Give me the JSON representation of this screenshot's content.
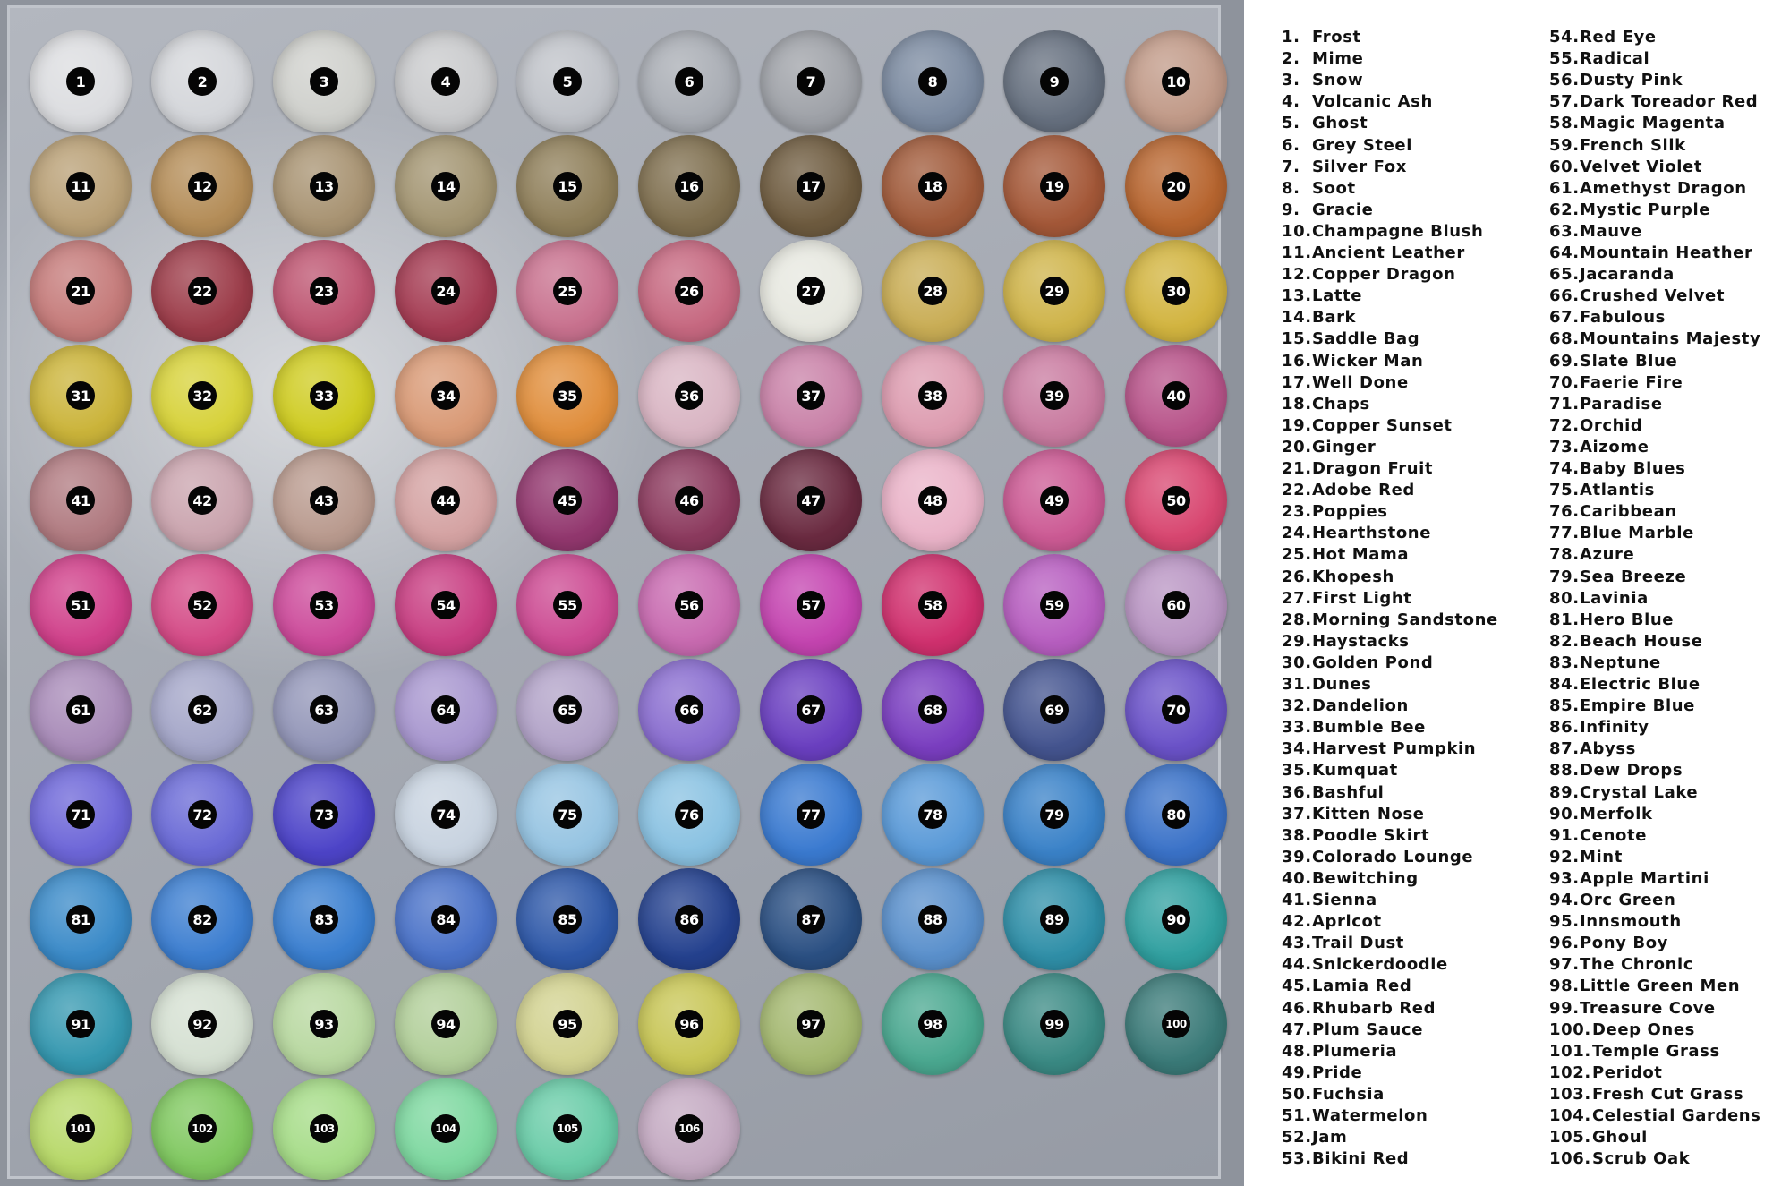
{
  "swatches": [
    {
      "num": "1",
      "name": "Frost",
      "color": "#dcdde0"
    },
    {
      "num": "2",
      "name": "Mime",
      "color": "#d4d6da"
    },
    {
      "num": "3",
      "name": "Snow",
      "color": "#cfd0cc"
    },
    {
      "num": "4",
      "name": "Volcanic Ash",
      "color": "#c9cacc"
    },
    {
      "num": "5",
      "name": "Ghost",
      "color": "#bfc2c8"
    },
    {
      "num": "6",
      "name": "Grey Steel",
      "color": "#a9adb4"
    },
    {
      "num": "7",
      "name": "Silver Fox",
      "color": "#9fa2a8"
    },
    {
      "num": "8",
      "name": "Soot",
      "color": "#7b8aa0"
    },
    {
      "num": "9",
      "name": "Gracie",
      "color": "#66707f"
    },
    {
      "num": "10",
      "name": "Champagne Blush",
      "color": "#c19a88"
    },
    {
      "num": "11",
      "name": "Ancient Leather",
      "color": "#b9a076"
    },
    {
      "num": "12",
      "name": "Copper Dragon",
      "color": "#b48d58"
    },
    {
      "num": "13",
      "name": "Latte",
      "color": "#a89372"
    },
    {
      "num": "14",
      "name": "Bark",
      "color": "#a39572"
    },
    {
      "num": "15",
      "name": "Saddle Bag",
      "color": "#8f7f5a"
    },
    {
      "num": "16",
      "name": "Wicker Man",
      "color": "#7f6f4f"
    },
    {
      "num": "17",
      "name": "Well Done",
      "color": "#6e5b3f"
    },
    {
      "num": "18",
      "name": "Chaps",
      "color": "#a05a3a"
    },
    {
      "num": "19",
      "name": "Copper Sunset",
      "color": "#a45838"
    },
    {
      "num": "20",
      "name": "Ginger",
      "color": "#b7652f"
    },
    {
      "num": "21",
      "name": "Dragon Fruit",
      "color": "#c57b7a"
    },
    {
      "num": "22",
      "name": "Adobe Red",
      "color": "#9c3c49"
    },
    {
      "num": "23",
      "name": "Poppies",
      "color": "#bd5470"
    },
    {
      "num": "24",
      "name": "Hearthstone",
      "color": "#a43b52"
    },
    {
      "num": "25",
      "name": "Hot Mama",
      "color": "#c8718e"
    },
    {
      "num": "26",
      "name": "Khopesh",
      "color": "#c66880"
    },
    {
      "num": "27",
      "name": "First Light",
      "color": "#e7e8e0"
    },
    {
      "num": "28",
      "name": "Morning Sandstone",
      "color": "#c9ad55"
    },
    {
      "num": "29",
      "name": "Haystacks",
      "color": "#cfb44a"
    },
    {
      "num": "30",
      "name": "Golden Pond",
      "color": "#d2b43f"
    },
    {
      "num": "31",
      "name": "Dunes",
      "color": "#cbb43a"
    },
    {
      "num": "32",
      "name": "Dandelion",
      "color": "#d7d23a"
    },
    {
      "num": "33",
      "name": "Bumble Bee",
      "color": "#cfcc22"
    },
    {
      "num": "34",
      "name": "Harvest Pumpkin",
      "color": "#d99a76"
    },
    {
      "num": "35",
      "name": "Kumquat",
      "color": "#e08e3c"
    },
    {
      "num": "36",
      "name": "Bashful",
      "color": "#d9b5c3"
    },
    {
      "num": "37",
      "name": "Kitten Nose",
      "color": "#c982a8"
    },
    {
      "num": "38",
      "name": "Poodle Skirt",
      "color": "#dd9cb0"
    },
    {
      "num": "39",
      "name": "Colorado Lounge",
      "color": "#c97ba0"
    },
    {
      "num": "40",
      "name": "Bewitching",
      "color": "#b8548a"
    },
    {
      "num": "41",
      "name": "Sienna",
      "color": "#b07a80"
    },
    {
      "num": "42",
      "name": "Apricot",
      "color": "#caa4ae"
    },
    {
      "num": "43",
      "name": "Trail Dust",
      "color": "#b99a8e"
    },
    {
      "num": "44",
      "name": "Snickerdoodle",
      "color": "#d4a2a2"
    },
    {
      "num": "45",
      "name": "Lamia Red",
      "color": "#92376e"
    },
    {
      "num": "46",
      "name": "Rhubarb Red",
      "color": "#8c3a5e"
    },
    {
      "num": "47",
      "name": "Plum Sauce",
      "color": "#6a2a40"
    },
    {
      "num": "48",
      "name": "Plumeria",
      "color": "#eab3c8"
    },
    {
      "num": "49",
      "name": "Pride",
      "color": "#cc5a94"
    },
    {
      "num": "50",
      "name": "Fuchsia",
      "color": "#d84670"
    },
    {
      "num": "51",
      "name": "Watermelon",
      "color": "#d0408a"
    },
    {
      "num": "52",
      "name": "Jam",
      "color": "#d44a86"
    },
    {
      "num": "53",
      "name": "Bikini Red",
      "color": "#cc4a9a"
    },
    {
      "num": "54",
      "name": "Red Eye",
      "color": "#c83e82"
    },
    {
      "num": "55",
      "name": "Radical",
      "color": "#cc4a92"
    },
    {
      "num": "56",
      "name": "Dusty Pink",
      "color": "#c86ab0"
    },
    {
      "num": "57",
      "name": "Dark Toreador Red",
      "color": "#c444b0"
    },
    {
      "num": "58",
      "name": "Magic Magenta",
      "color": "#d0306e"
    },
    {
      "num": "59",
      "name": "French Silk",
      "color": "#b75ec0"
    },
    {
      "num": "60",
      "name": "Velvet Violet",
      "color": "#b995c3"
    },
    {
      "num": "61",
      "name": "Amethyst Dragon",
      "color": "#a88bb8"
    },
    {
      "num": "62",
      "name": "Mystic Purple",
      "color": "#a4a6c8"
    },
    {
      "num": "63",
      "name": "Mauve",
      "color": "#9396b8"
    },
    {
      "num": "64",
      "name": "Mountain Heather",
      "color": "#a897cf"
    },
    {
      "num": "65",
      "name": "Jacaranda",
      "color": "#b2a3c8"
    },
    {
      "num": "66",
      "name": "Crushed Velvet",
      "color": "#8a6ed0"
    },
    {
      "num": "67",
      "name": "Fabulous",
      "color": "#6a3fc0"
    },
    {
      "num": "68",
      "name": "Mountains Majesty",
      "color": "#7a3ec0"
    },
    {
      "num": "69",
      "name": "Slate Blue",
      "color": "#44548f"
    },
    {
      "num": "70",
      "name": "Faerie Fire",
      "color": "#6a52c8"
    },
    {
      "num": "71",
      "name": "Paradise",
      "color": "#6d66d8"
    },
    {
      "num": "72",
      "name": "Orchid",
      "color": "#6a6ad6"
    },
    {
      "num": "73",
      "name": "Aizome",
      "color": "#4d44c8"
    },
    {
      "num": "74",
      "name": "Baby Blues",
      "color": "#c8d3e0"
    },
    {
      "num": "75",
      "name": "Atlantis",
      "color": "#96c4e2"
    },
    {
      "num": "76",
      "name": "Caribbean",
      "color": "#8ac2e2"
    },
    {
      "num": "77",
      "name": "Blue Marble",
      "color": "#3a7ad0"
    },
    {
      "num": "78",
      "name": "Azure",
      "color": "#5a9ad8"
    },
    {
      "num": "79",
      "name": "Sea Breeze",
      "color": "#3a82c8"
    },
    {
      "num": "80",
      "name": "Lavinia",
      "color": "#3a72c8"
    },
    {
      "num": "81",
      "name": "Hero Blue",
      "color": "#3a8ac8"
    },
    {
      "num": "82",
      "name": "Beach House",
      "color": "#3c7ed0"
    },
    {
      "num": "83",
      "name": "Neptune",
      "color": "#3a7fd0"
    },
    {
      "num": "84",
      "name": "Electric Blue",
      "color": "#4a72c8"
    },
    {
      "num": "85",
      "name": "Empire Blue",
      "color": "#2e58a8"
    },
    {
      "num": "86",
      "name": "Infinity",
      "color": "#24418e"
    },
    {
      "num": "87",
      "name": "Abyss",
      "color": "#2a4f82"
    },
    {
      "num": "88",
      "name": "Dew Drops",
      "color": "#5a90cc"
    },
    {
      "num": "89",
      "name": "Crystal Lake",
      "color": "#2f8fa8"
    },
    {
      "num": "90",
      "name": "Merfolk",
      "color": "#30a0a0"
    },
    {
      "num": "91",
      "name": "Cenote",
      "color": "#3598b0"
    },
    {
      "num": "92",
      "name": "Mint",
      "color": "#d5e0d2"
    },
    {
      "num": "93",
      "name": "Apple Martini",
      "color": "#b8d8a0"
    },
    {
      "num": "94",
      "name": "Orc Green",
      "color": "#b2cf9a"
    },
    {
      "num": "95",
      "name": "Innsmouth",
      "color": "#d2d290"
    },
    {
      "num": "96",
      "name": "Pony Boy",
      "color": "#c8c656"
    },
    {
      "num": "97",
      "name": "The Chronic",
      "color": "#a4b870"
    },
    {
      "num": "98",
      "name": "Little Green Men",
      "color": "#4aa890"
    },
    {
      "num": "99",
      "name": "Treasure Cove",
      "color": "#3a8a84"
    },
    {
      "num": "100",
      "name": "Deep Ones",
      "color": "#3a7a78"
    },
    {
      "num": "101",
      "name": "Temple Grass",
      "color": "#b7d868"
    },
    {
      "num": "102",
      "name": "Peridot",
      "color": "#80c860"
    },
    {
      "num": "103",
      "name": "Fresh Cut Grass",
      "color": "#a6dc88"
    },
    {
      "num": "104",
      "name": "Celestial Gardens",
      "color": "#7ed8a0"
    },
    {
      "num": "105",
      "name": "Ghoul",
      "color": "#6acca8"
    },
    {
      "num": "106",
      "name": "Scrub Oak",
      "color": "#c4aac2"
    }
  ]
}
